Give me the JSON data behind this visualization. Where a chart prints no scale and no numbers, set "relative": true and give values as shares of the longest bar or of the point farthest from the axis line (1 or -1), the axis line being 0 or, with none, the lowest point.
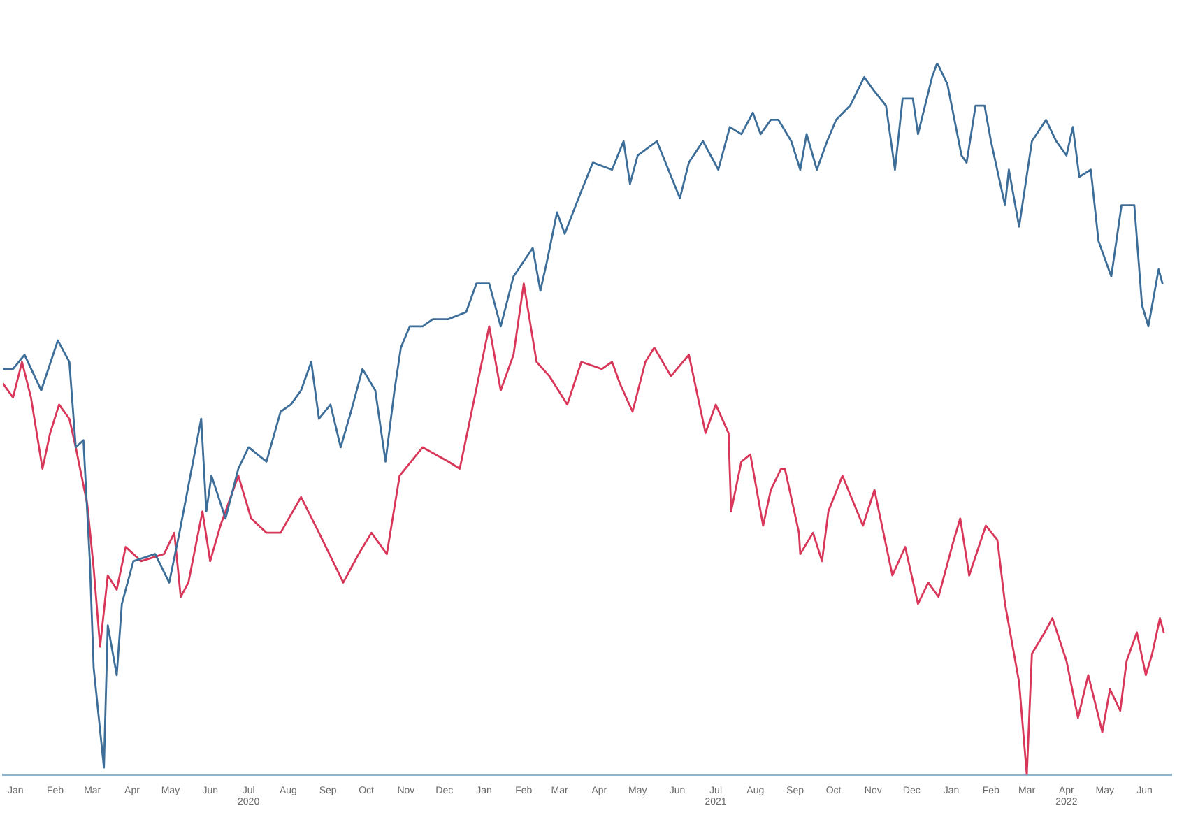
{
  "chart_data": {
    "type": "line",
    "relative": true,
    "grid": false,
    "legend": false,
    "marker": "none",
    "line_style": "solid",
    "xlim": [
      "2019-12-22",
      "2022-06-22"
    ],
    "xticks": [
      {
        "value": "2020-01-01",
        "label": "Jan"
      },
      {
        "value": "2020-02-01",
        "label": "Feb"
      },
      {
        "value": "2020-03-01",
        "label": "Mar"
      },
      {
        "value": "2020-04-01",
        "label": "Apr"
      },
      {
        "value": "2020-05-01",
        "label": "May"
      },
      {
        "value": "2020-06-01",
        "label": "Jun"
      },
      {
        "value": "2020-07-01",
        "label": "Jul\n2020"
      },
      {
        "value": "2020-08-01",
        "label": "Aug"
      },
      {
        "value": "2020-09-01",
        "label": "Sep"
      },
      {
        "value": "2020-10-01",
        "label": "Oct"
      },
      {
        "value": "2020-11-01",
        "label": "Nov"
      },
      {
        "value": "2020-12-01",
        "label": "Dec"
      },
      {
        "value": "2021-01-01",
        "label": "Jan"
      },
      {
        "value": "2021-02-01",
        "label": "Feb"
      },
      {
        "value": "2021-03-01",
        "label": "Mar"
      },
      {
        "value": "2021-04-01",
        "label": "Apr"
      },
      {
        "value": "2021-05-01",
        "label": "May"
      },
      {
        "value": "2021-06-01",
        "label": "Jun"
      },
      {
        "value": "2021-07-01",
        "label": "Jul\n2021"
      },
      {
        "value": "2021-08-01",
        "label": "Aug"
      },
      {
        "value": "2021-09-01",
        "label": "Sep"
      },
      {
        "value": "2021-10-01",
        "label": "Oct"
      },
      {
        "value": "2021-11-01",
        "label": "Nov"
      },
      {
        "value": "2021-12-01",
        "label": "Dec"
      },
      {
        "value": "2022-01-01",
        "label": "Jan"
      },
      {
        "value": "2022-02-01",
        "label": "Feb"
      },
      {
        "value": "2022-03-01",
        "label": "Mar"
      },
      {
        "value": "2022-04-01",
        "label": "Apr\n2022"
      },
      {
        "value": "2022-05-01",
        "label": "May"
      },
      {
        "value": "2022-06-01",
        "label": "Jun"
      }
    ],
    "series": [
      {
        "color": "#3d6e99",
        "x": [
          "2019-12-22",
          "2019-12-30",
          "2020-01-08",
          "2020-01-21",
          "2020-02-03",
          "2020-02-12",
          "2020-02-17",
          "2020-02-23",
          "2020-02-28",
          "2020-03-02",
          "2020-03-10",
          "2020-03-13",
          "2020-03-20",
          "2020-03-24",
          "2020-04-02",
          "2020-04-19",
          "2020-04-30",
          "2020-05-08",
          "2020-05-25",
          "2020-05-29",
          "2020-06-02",
          "2020-06-13",
          "2020-06-23",
          "2020-07-01",
          "2020-07-15",
          "2020-07-26",
          "2020-08-03",
          "2020-08-11",
          "2020-08-19",
          "2020-08-25",
          "2020-09-03",
          "2020-09-11",
          "2020-09-19",
          "2020-09-28",
          "2020-10-08",
          "2020-10-16",
          "2020-10-23",
          "2020-10-28",
          "2020-11-04",
          "2020-11-14",
          "2020-11-22",
          "2020-12-04",
          "2020-12-18",
          "2020-12-26",
          "2021-01-05",
          "2021-01-14",
          "2021-01-24",
          "2021-02-08",
          "2021-02-14",
          "2021-02-19",
          "2021-02-27",
          "2021-03-05",
          "2021-03-18",
          "2021-03-27",
          "2021-04-11",
          "2021-04-20",
          "2021-04-25",
          "2021-05-01",
          "2021-05-16",
          "2021-06-03",
          "2021-06-10",
          "2021-06-21",
          "2021-07-03",
          "2021-07-12",
          "2021-07-21",
          "2021-07-30",
          "2021-08-05",
          "2021-08-13",
          "2021-08-19",
          "2021-08-29",
          "2021-09-05",
          "2021-09-10",
          "2021-09-18",
          "2021-09-26",
          "2021-10-03",
          "2021-10-14",
          "2021-10-25",
          "2021-11-02",
          "2021-11-11",
          "2021-11-18",
          "2021-11-24",
          "2021-12-02",
          "2021-12-06",
          "2021-12-17",
          "2021-12-21",
          "2021-12-29",
          "2022-01-09",
          "2022-01-13",
          "2022-01-20",
          "2022-01-27",
          "2022-02-01",
          "2022-02-12",
          "2022-02-15",
          "2022-02-23",
          "2022-03-05",
          "2022-03-16",
          "2022-03-24",
          "2022-04-01",
          "2022-04-06",
          "2022-04-11",
          "2022-04-20",
          "2022-04-26",
          "2022-05-06",
          "2022-05-14",
          "2022-05-24",
          "2022-05-30",
          "2022-06-04",
          "2022-06-12",
          "2022-06-15"
        ],
        "values": [
          0.57,
          0.57,
          0.59,
          0.54,
          0.61,
          0.58,
          0.46,
          0.47,
          0.3,
          0.15,
          0.01,
          0.21,
          0.14,
          0.24,
          0.3,
          0.31,
          0.27,
          0.34,
          0.5,
          0.37,
          0.42,
          0.36,
          0.43,
          0.46,
          0.44,
          0.51,
          0.52,
          0.54,
          0.58,
          0.5,
          0.52,
          0.46,
          0.51,
          0.57,
          0.54,
          0.44,
          0.54,
          0.6,
          0.63,
          0.63,
          0.64,
          0.64,
          0.65,
          0.69,
          0.69,
          0.63,
          0.7,
          0.74,
          0.68,
          0.72,
          0.79,
          0.76,
          0.82,
          0.86,
          0.85,
          0.89,
          0.83,
          0.87,
          0.89,
          0.81,
          0.86,
          0.89,
          0.85,
          0.91,
          0.9,
          0.93,
          0.9,
          0.92,
          0.92,
          0.89,
          0.85,
          0.9,
          0.85,
          0.89,
          0.92,
          0.94,
          0.98,
          0.96,
          0.94,
          0.85,
          0.95,
          0.95,
          0.9,
          0.98,
          1.0,
          0.97,
          0.87,
          0.86,
          0.94,
          0.94,
          0.89,
          0.8,
          0.85,
          0.77,
          0.89,
          0.92,
          0.89,
          0.87,
          0.91,
          0.84,
          0.85,
          0.75,
          0.7,
          0.8,
          0.8,
          0.66,
          0.63,
          0.71,
          0.69
        ]
      },
      {
        "color": "#d9375a",
        "x": [
          "2019-12-22",
          "2019-12-30",
          "2020-01-06",
          "2020-01-13",
          "2020-01-22",
          "2020-01-28",
          "2020-02-04",
          "2020-02-12",
          "2020-02-17",
          "2020-02-26",
          "2020-03-02",
          "2020-03-07",
          "2020-03-13",
          "2020-03-20",
          "2020-03-27",
          "2020-04-08",
          "2020-04-26",
          "2020-05-04",
          "2020-05-09",
          "2020-05-15",
          "2020-05-26",
          "2020-06-01",
          "2020-06-09",
          "2020-06-23",
          "2020-07-03",
          "2020-07-15",
          "2020-07-26",
          "2020-08-11",
          "2020-08-25",
          "2020-09-13",
          "2020-09-25",
          "2020-10-05",
          "2020-10-17",
          "2020-10-27",
          "2020-11-14",
          "2020-12-04",
          "2020-12-13",
          "2020-12-20",
          "2021-01-05",
          "2021-01-14",
          "2021-01-24",
          "2021-02-01",
          "2021-02-11",
          "2021-02-21",
          "2021-03-07",
          "2021-03-18",
          "2021-04-03",
          "2021-04-11",
          "2021-04-17",
          "2021-04-27",
          "2021-05-07",
          "2021-05-14",
          "2021-05-27",
          "2021-06-10",
          "2021-06-23",
          "2021-07-01",
          "2021-07-11",
          "2021-07-13",
          "2021-07-21",
          "2021-07-28",
          "2021-08-07",
          "2021-08-13",
          "2021-08-21",
          "2021-08-24",
          "2021-09-04",
          "2021-09-05",
          "2021-09-15",
          "2021-09-22",
          "2021-09-27",
          "2021-10-08",
          "2021-10-24",
          "2021-11-02",
          "2021-11-16",
          "2021-11-26",
          "2021-12-06",
          "2021-12-14",
          "2021-12-22",
          "2022-01-03",
          "2022-01-08",
          "2022-01-15",
          "2022-01-28",
          "2022-02-06",
          "2022-02-12",
          "2022-02-23",
          "2022-03-01",
          "2022-03-05",
          "2022-03-15",
          "2022-03-21",
          "2022-04-01",
          "2022-04-10",
          "2022-04-18",
          "2022-04-29",
          "2022-05-05",
          "2022-05-13",
          "2022-05-18",
          "2022-05-26",
          "2022-06-02",
          "2022-06-07",
          "2022-06-13",
          "2022-06-16"
        ],
        "values": [
          0.55,
          0.53,
          0.58,
          0.53,
          0.43,
          0.48,
          0.52,
          0.5,
          0.46,
          0.38,
          0.29,
          0.18,
          0.28,
          0.26,
          0.32,
          0.3,
          0.31,
          0.34,
          0.25,
          0.27,
          0.37,
          0.3,
          0.35,
          0.42,
          0.36,
          0.34,
          0.34,
          0.39,
          0.34,
          0.27,
          0.31,
          0.34,
          0.31,
          0.42,
          0.46,
          0.44,
          0.43,
          0.49,
          0.63,
          0.54,
          0.59,
          0.69,
          0.58,
          0.56,
          0.52,
          0.58,
          0.57,
          0.58,
          0.55,
          0.51,
          0.58,
          0.6,
          0.56,
          0.59,
          0.48,
          0.52,
          0.48,
          0.37,
          0.44,
          0.45,
          0.35,
          0.4,
          0.43,
          0.43,
          0.34,
          0.31,
          0.34,
          0.3,
          0.37,
          0.42,
          0.35,
          0.4,
          0.28,
          0.32,
          0.24,
          0.27,
          0.25,
          0.33,
          0.36,
          0.28,
          0.35,
          0.33,
          0.24,
          0.13,
          0.0,
          0.17,
          0.2,
          0.22,
          0.16,
          0.08,
          0.14,
          0.06,
          0.12,
          0.09,
          0.16,
          0.2,
          0.14,
          0.17,
          0.22,
          0.2
        ]
      }
    ]
  }
}
